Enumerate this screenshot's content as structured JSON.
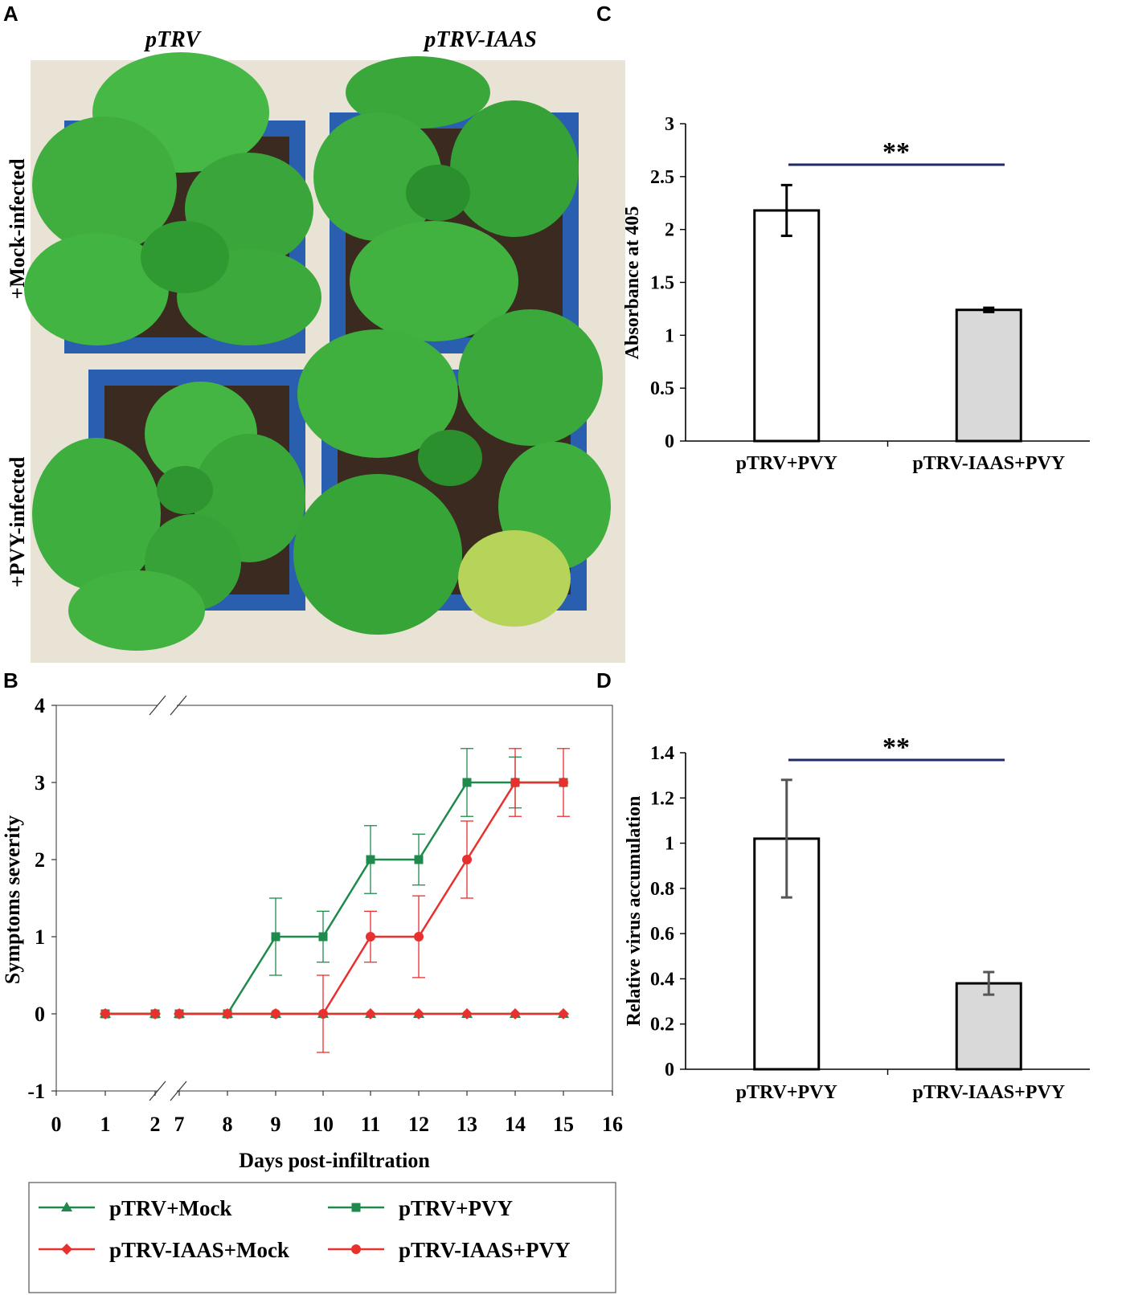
{
  "panel_labels": {
    "a": "A",
    "b": "B",
    "c": "C",
    "d": "D"
  },
  "photo": {
    "col_labels": [
      "pTRV",
      "pTRV-IAAS"
    ],
    "row_labels": [
      "+Mock-infected",
      "+PVY-infected"
    ],
    "colors": {
      "leaf": "#3fb13f",
      "leaf_dark": "#2b8f2c",
      "pot": "#2a5fb0",
      "soil": "#3a2a1f",
      "bg": "#e9e3d6"
    }
  },
  "chart_data": [
    {
      "type": "line",
      "panel": "B",
      "xlabel": "Days post-infiltration",
      "ylabel": "Symptoms severity",
      "ylim": [
        -1,
        4
      ],
      "yticks": [
        "-1",
        "0",
        "1",
        "2",
        "3",
        "4"
      ],
      "xticks": [
        "0",
        "1",
        "2",
        "7",
        "8",
        "9",
        "10",
        "11",
        "12",
        "13",
        "14",
        "15",
        "16"
      ],
      "axis_break": "between 2 and 7",
      "series": [
        {
          "name": "pTRV+Mock",
          "color": "#1f8a4c",
          "marker": "triangle",
          "x": [
            "1",
            "2",
            "7",
            "8",
            "9",
            "10",
            "11",
            "12",
            "13",
            "14",
            "15"
          ],
          "values": [
            0,
            0,
            0,
            0,
            0,
            0,
            0,
            0,
            0,
            0,
            0
          ],
          "errors": []
        },
        {
          "name": "pTRV+PVY",
          "color": "#1f8a4c",
          "marker": "square",
          "x": [
            "1",
            "2",
            "7",
            "8",
            "9",
            "10",
            "11",
            "12",
            "13",
            "14",
            "15"
          ],
          "values": [
            0,
            0,
            0,
            0,
            1,
            1,
            2,
            2,
            3,
            3,
            3
          ],
          "errors": [
            0,
            0,
            0,
            0,
            0.5,
            0.33,
            0.44,
            0.33,
            0.44,
            0.33,
            0
          ]
        },
        {
          "name": "pTRV-IAAS+Mock",
          "color": "#e8302e",
          "marker": "diamond",
          "x": [
            "1",
            "2",
            "7",
            "8",
            "9",
            "10",
            "11",
            "12",
            "13",
            "14",
            "15"
          ],
          "values": [
            0,
            0,
            0,
            0,
            0,
            0,
            0,
            0,
            0,
            0,
            0
          ],
          "errors": []
        },
        {
          "name": "pTRV-IAAS+PVY",
          "color": "#e8302e",
          "marker": "circle",
          "x": [
            "1",
            "2",
            "7",
            "8",
            "9",
            "10",
            "11",
            "12",
            "13",
            "14",
            "15"
          ],
          "values": [
            0,
            0,
            0,
            0,
            0,
            0,
            1,
            1,
            2,
            3,
            3
          ],
          "errors": [
            0,
            0,
            0,
            0,
            0,
            0.5,
            0.33,
            0.53,
            0.5,
            0.44,
            0.44
          ]
        }
      ],
      "legend_placement": "bottom",
      "grid": false
    },
    {
      "type": "bar",
      "panel": "C",
      "ylabel": "Absorbance at 405",
      "ylim": [
        0,
        3
      ],
      "yticks": [
        "0",
        "0.5",
        "1",
        "1.5",
        "2",
        "2.5",
        "3"
      ],
      "categories": [
        "pTRV+PVY",
        "pTRV-IAAS+PVY"
      ],
      "values": [
        2.18,
        1.24
      ],
      "errors": [
        0.24,
        0.02
      ],
      "bar_colors": [
        "#ffffff",
        "#d9d9d9"
      ],
      "significance": "**",
      "grid": false
    },
    {
      "type": "bar",
      "panel": "D",
      "ylabel": "Relative virus accumulation",
      "ylim": [
        0,
        1.4
      ],
      "yticks": [
        "0",
        "0.2",
        "0.4",
        "0.6",
        "0.8",
        "1",
        "1.2",
        "1.4"
      ],
      "categories": [
        "pTRV+PVY",
        "pTRV-IAAS+PVY"
      ],
      "values": [
        1.02,
        0.38
      ],
      "errors": [
        0.26,
        0.05
      ],
      "bar_colors": [
        "#ffffff",
        "#d9d9d9"
      ],
      "significance": "**",
      "grid": false
    }
  ]
}
